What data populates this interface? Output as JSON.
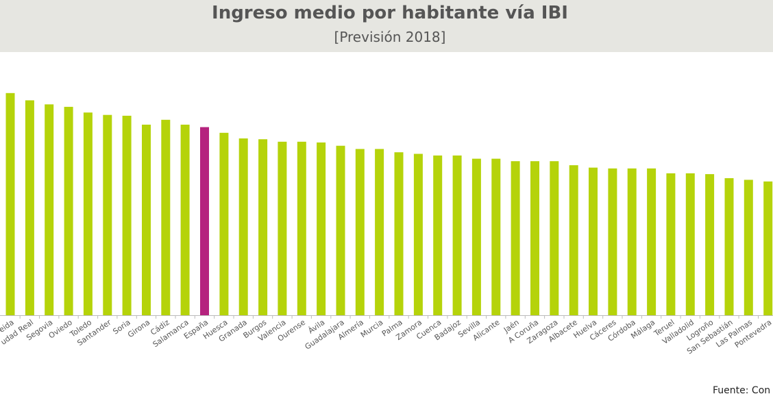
{
  "header": {
    "title": "Ingreso medio por habitante vía IBI",
    "subtitle": "[Previsión 2018]"
  },
  "footer": {
    "source": "Fuente: Con"
  },
  "colors": {
    "bar": "#b5d30a",
    "highlight": "#b5237e",
    "header_bg": "#e6e6e1",
    "axis": "#bbbbbb"
  },
  "chart_data": {
    "type": "bar",
    "title": "Ingreso medio por habitante vía IBI",
    "subtitle": "[Previsión 2018]",
    "categories": [
      "Lleida",
      "Ciudad Real",
      "Segovia",
      "Oviedo",
      "Toledo",
      "Santander",
      "Soria",
      "Girona",
      "Cádiz",
      "Salamanca",
      "España",
      "Huesca",
      "Granada",
      "Burgos",
      "Valencia",
      "Ourense",
      "Ávila",
      "Guadalajara",
      "Almería",
      "Murcia",
      "Palma",
      "Zamora",
      "Cuenca",
      "Badajoz",
      "Sevilla",
      "Alicante",
      "Jaén",
      "A Coruña",
      "Zaragoza",
      "Albacete",
      "Huelva",
      "Cáceres",
      "Córdoba",
      "Málaga",
      "Teruel",
      "Valladolid",
      "Logroño",
      "San Sebastián",
      "Las Palmas",
      "Pontevedra"
    ],
    "category_labels": [
      "eida",
      "udad Real",
      "Segovia",
      "Oviedo",
      "Toledo",
      "Santander",
      "Soria",
      "Girona",
      "Cádiz",
      "Salamanca",
      "España",
      "Huesca",
      "Granada",
      "Burgos",
      "Valencia",
      "Ourense",
      "Ávila",
      "Guadalajara",
      "Almería",
      "Murcia",
      "Palma",
      "Zamora",
      "Cuenca",
      "Badajoz",
      "Sevilla",
      "Alicante",
      "Jaén",
      "A Coruña",
      "Zaragoza",
      "Albacete",
      "Huelva",
      "Cáceres",
      "Córdoba",
      "Málaga",
      "Teruel",
      "Valladolid",
      "Logroño",
      "San Sebastián",
      "Las Palmas",
      "Pontevedra"
    ],
    "values": [
      274,
      265,
      260,
      257,
      250,
      247,
      246,
      235,
      241,
      235,
      232,
      225,
      218,
      217,
      214,
      214,
      213,
      209,
      205,
      205,
      201,
      199,
      197,
      197,
      193,
      193,
      190,
      190,
      190,
      185,
      182,
      181,
      181,
      181,
      175,
      175,
      174,
      169,
      167,
      165
    ],
    "highlight_category": "España",
    "ylim": [
      0,
      300
    ],
    "grid": false,
    "legend": "none"
  }
}
